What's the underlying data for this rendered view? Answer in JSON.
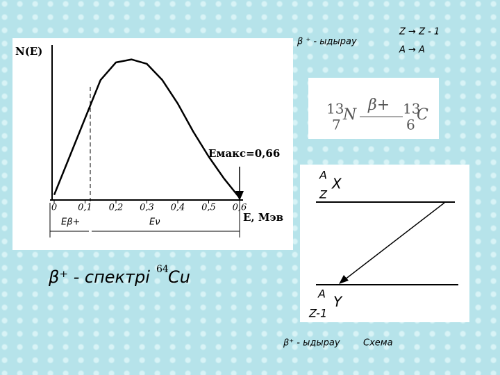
{
  "chart_data": {
    "type": "line",
    "y_label": "N(E)",
    "x_label": "E, Мэв",
    "annotation": "Eмакс=0,66",
    "x": [
      0,
      0.05,
      0.1,
      0.15,
      0.2,
      0.25,
      0.3,
      0.35,
      0.4,
      0.45,
      0.5,
      0.55,
      0.6
    ],
    "values": [
      3,
      29,
      55,
      81,
      93,
      95,
      92,
      81,
      65,
      46,
      29,
      14,
      1
    ],
    "color": "#000000",
    "xlim": [
      0,
      0.6
    ],
    "ylim": [
      0,
      100
    ],
    "xticks": [
      0,
      {
        "value": 0.1,
        "label": "0,1"
      },
      {
        "value": 0.2,
        "label": "0,2"
      },
      {
        "value": 0.3,
        "label": "0,3"
      },
      {
        "value": 0.4,
        "label": "0,4"
      },
      {
        "value": 0.5,
        "label": "0,5"
      },
      {
        "value": 0.6,
        "label": "0,6"
      }
    ],
    "range_labels": [
      "Eβ+",
      "Eν"
    ]
  },
  "slide": {
    "caption": "β⁺ - спектрі",
    "isotope_mass": "64",
    "isotope": "Cu",
    "decay_title": "β ⁺ - ыдырау",
    "rule_z": "Z → Z - 1",
    "rule_a": "A → A",
    "reaction": {
      "parent_mass": "13",
      "parent_z": "7",
      "parent": "N",
      "particle": "β+",
      "daughter_mass": "13",
      "daughter_z": "6",
      "daughter": "C"
    },
    "scheme": {
      "parent_a": "A",
      "parent_z": "Z",
      "parent": "X",
      "daughter_a": "A",
      "daughter_z": "Z-1",
      "daughter": "Y"
    },
    "footer_decay": "β⁺ - ыдырау",
    "footer_scheme": "Схема"
  }
}
